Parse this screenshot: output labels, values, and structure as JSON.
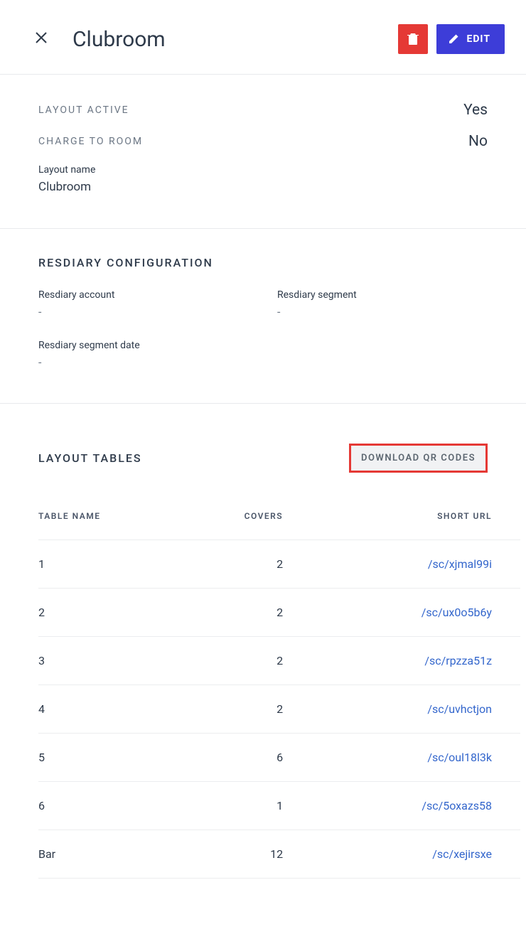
{
  "header": {
    "title": "Clubroom",
    "edit_label": "EDIT"
  },
  "summary": {
    "layout_active_label": "LAYOUT ACTIVE",
    "layout_active_value": "Yes",
    "charge_to_room_label": "CHARGE TO ROOM",
    "charge_to_room_value": "No",
    "layout_name_label": "Layout name",
    "layout_name_value": "Clubroom"
  },
  "resdiary": {
    "heading": "RESDIARY CONFIGURATION",
    "account_label": "Resdiary account",
    "account_value": "-",
    "segment_label": "Resdiary segment",
    "segment_value": "-",
    "segment_date_label": "Resdiary segment date",
    "segment_date_value": "-"
  },
  "tables_section": {
    "heading": "LAYOUT TABLES",
    "download_label": "DOWNLOAD QR CODES",
    "columns": {
      "name": "TABLE NAME",
      "covers": "COVERS",
      "url": "SHORT URL"
    },
    "rows": [
      {
        "name": "1",
        "covers": "2",
        "url": "/sc/xjmal99i"
      },
      {
        "name": "2",
        "covers": "2",
        "url": "/sc/ux0o5b6y"
      },
      {
        "name": "3",
        "covers": "2",
        "url": "/sc/rpzza51z"
      },
      {
        "name": "4",
        "covers": "2",
        "url": "/sc/uvhctjon"
      },
      {
        "name": "5",
        "covers": "6",
        "url": "/sc/oul18l3k"
      },
      {
        "name": "6",
        "covers": "1",
        "url": "/sc/5oxazs58"
      },
      {
        "name": "Bar",
        "covers": "12",
        "url": "/sc/xejirsxe"
      }
    ]
  },
  "colors": {
    "danger": "#e53935",
    "primary": "#3d3dd8",
    "link": "#3366cc",
    "border": "#e8eaed",
    "text": "#2e3a4a",
    "muted": "#6b7684"
  }
}
